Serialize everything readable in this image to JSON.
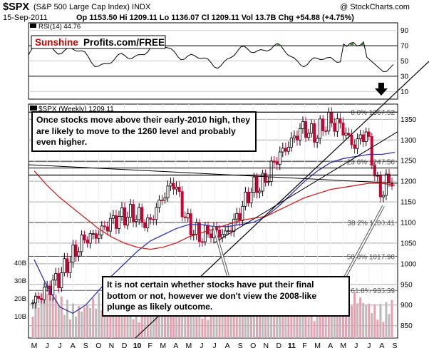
{
  "header": {
    "symbol": "$SPX",
    "name": "(S&P 500 Large Cap Index)",
    "exchange": "INDX",
    "watermark": "@ StockCharts.com",
    "date": "15-Sep-2011",
    "stats": "Op 1153.50  Hi 1209.11  Lo 1136.07  Cl 1209.11  Vol 13.7B  Chg +54.88 (+4.75%)"
  },
  "rsi": {
    "label": "RSI(14) 44.76",
    "brand_left": "Sunshine",
    "brand_right": "Profits.com/FREE",
    "ticks": [
      90,
      70,
      50,
      30,
      10
    ],
    "ylim": [
      0,
      100
    ]
  },
  "price": {
    "legend": "$SPX (Weekly) 1209.11",
    "ticks": [
      1350,
      1300,
      1250,
      1200,
      1150,
      1100,
      1050,
      1000,
      950,
      900,
      850
    ],
    "volume_ticks": [
      "40B",
      "30B",
      "20B",
      "10B"
    ],
    "fib_labels": [
      {
        "text": "0.0% 1367.52",
        "value": 1367.52
      },
      {
        "text": "23.6% 1247.50",
        "value": 1247.5
      },
      {
        "text": "38.2% 1100.41",
        "value": 1100.41
      },
      {
        "text": "50.0% 1017.90",
        "value": 1017.9
      },
      {
        "text": "61.8% 935.39",
        "value": 935.39
      }
    ],
    "annotation_top": "Once stocks move above their early-2010 high, they are likely to move to the 1260 level and probably even higher.",
    "annotation_bottom": "It is not certain whether stocks have put their final bottom or not, however we don't view the 2008-like plunge as likely outcome."
  },
  "x_axis": {
    "labels": [
      "M",
      "J",
      "J",
      "A",
      "S",
      "O",
      "N",
      "D",
      "10",
      "F",
      "M",
      "A",
      "M",
      "J",
      "J",
      "A",
      "S",
      "O",
      "N",
      "D",
      "11",
      "F",
      "M",
      "A",
      "M",
      "J",
      "J",
      "A",
      "S"
    ],
    "bold": [
      "10",
      "11"
    ]
  },
  "chart_data": {
    "type": "candlestick",
    "title": "$SPX (S&P 500 Large Cap Index) INDX",
    "period": "Weekly",
    "ylim": [
      820,
      1380
    ],
    "x": [
      "2009-05",
      "2009-06",
      "2009-07",
      "2009-08",
      "2009-09",
      "2009-10",
      "2009-11",
      "2009-12",
      "2010-01",
      "2010-02",
      "2010-03",
      "2010-04",
      "2010-05",
      "2010-06",
      "2010-07",
      "2010-08",
      "2010-09",
      "2010-10",
      "2010-11",
      "2010-12",
      "2011-01",
      "2011-02",
      "2011-03",
      "2011-04",
      "2011-05",
      "2011-06",
      "2011-07",
      "2011-08",
      "2011-09"
    ],
    "series": [
      {
        "name": "$SPX",
        "values": [
          905,
          935,
          965,
          1015,
          1060,
          1070,
          1100,
          1115,
          1120,
          1095,
          1155,
          1200,
          1100,
          1065,
          1080,
          1070,
          1115,
          1180,
          1195,
          1255,
          1290,
          1330,
          1310,
          1345,
          1335,
          1285,
          1320,
          1170,
          1209
        ]
      },
      {
        "name": "MA50",
        "values": [
          1010,
          945,
          895,
          880,
          900,
          935,
          970,
          1000,
          1030,
          1055,
          1070,
          1085,
          1095,
          1095,
          1090,
          1090,
          1095,
          1100,
          1115,
          1140,
          1170,
          1200,
          1225,
          1245,
          1255,
          1260,
          1265,
          1265,
          1270
        ]
      },
      {
        "name": "MA200",
        "values": [
          1225,
          1190,
          1160,
          1135,
          1110,
          1085,
          1065,
          1050,
          1040,
          1035,
          1040,
          1050,
          1065,
          1075,
          1085,
          1095,
          1105,
          1110,
          1115,
          1130,
          1145,
          1160,
          1170,
          1180,
          1185,
          1190,
          1195,
          1195,
          1190
        ]
      }
    ],
    "rsi": {
      "name": "RSI(14)",
      "last": 44.76
    }
  },
  "colors": {
    "up": "#000000",
    "down": "#cc0033",
    "ma50": "#3333aa",
    "ma200": "#cc2222",
    "rsi_fill": "#4a7a4a",
    "brand_red": "#cc0000"
  }
}
